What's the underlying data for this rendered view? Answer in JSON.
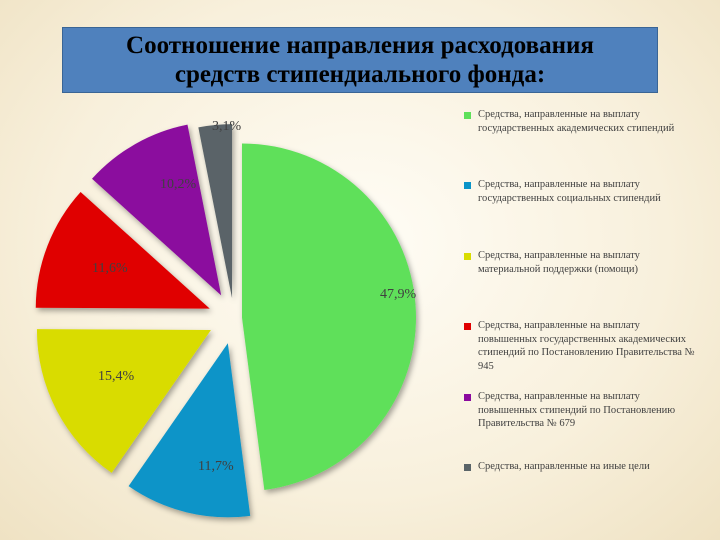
{
  "title": {
    "line1": "Соотношение направления расходования",
    "line2": "средств стипендиального фонда:"
  },
  "chart_data": {
    "type": "pie",
    "title": "Соотношение направления расходования средств стипендиального фонда:",
    "slices": [
      {
        "label": "Средства, направленные на выплату государственных академических стипендий",
        "value": 47.9,
        "display": "47,9%",
        "color": "#5ee05a"
      },
      {
        "label": "Средства, направленные на выплату государственных социальных стипендий",
        "value": 11.7,
        "display": "11,7%",
        "color": "#0a94c8"
      },
      {
        "label": "Средства, направленные на выплату материальной поддержки (помощи)",
        "value": 15.4,
        "display": "15,4%",
        "color": "#d9dc00"
      },
      {
        "label": "Средства, направленные на выплату повышенных государственных академических стипендий по Постановлению Правительства № 945",
        "value": 11.6,
        "display": "11,6%",
        "color": "#e00000"
      },
      {
        "label": "Средства, направленные на выплату повышенных стипендий по Постановлению Правительства № 679",
        "value": 10.2,
        "display": "10,2%",
        "color": "#8b0a9e"
      },
      {
        "label": "Средства, направленные на иные цели",
        "value": 3.1,
        "display": "3,1%",
        "color": "#5a6468"
      }
    ],
    "legend_position": "right",
    "exploded": true
  }
}
